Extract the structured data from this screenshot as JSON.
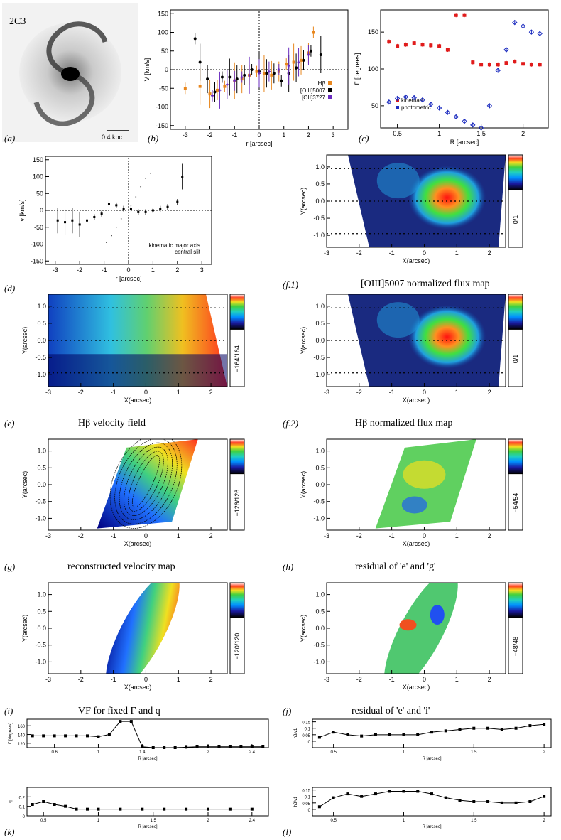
{
  "figure": {
    "galaxy": {
      "label": "2C3",
      "scale_bar": "0.4 kpc"
    },
    "panel_labels": [
      "(a)",
      "(b)",
      "(c)",
      "(d)",
      "(f.1)",
      "(e)",
      "(f.2)",
      "(g)",
      "(h)",
      "(i)",
      "(j)",
      "(k)",
      "(l)"
    ],
    "captions": {
      "f1": "[OIII]5007 normalized flux map",
      "e": "Hβ velocity field",
      "f2": "Hβ normalized flux map",
      "g": "reconstructed velocity map",
      "h": "residual of 'e' and 'g'",
      "i": "VF for fixed Γ and q",
      "j": "residual of 'e' and 'i'"
    },
    "colorbars": {
      "f1": "0/1",
      "e": "−164/164",
      "f2": "0/1",
      "g": "−126/126",
      "h": "−54/54",
      "i": "−120/120",
      "j": "−48/48"
    }
  },
  "chart_data": [
    {
      "id": "b",
      "type": "scatter",
      "xlabel": "r [arcsec]",
      "ylabel": "V [km/s]",
      "xlim": [
        -3.6,
        3.6
      ],
      "ylim": [
        -160,
        160
      ],
      "xticks": [
        -3,
        -2,
        -1,
        0,
        1,
        2,
        3
      ],
      "yticks": [
        -150,
        -100,
        -50,
        0,
        50,
        100,
        150
      ],
      "legend": [
        "Hβ",
        "[OIII]5007",
        "[OII]3727"
      ],
      "series": [
        {
          "name": "Hβ",
          "color": "#e8871e",
          "x": [
            -3.0,
            -2.4,
            -2.0,
            -1.7,
            -1.4,
            -1.0,
            -0.7,
            -0.4,
            -0.1,
            0.2,
            0.5,
            0.8,
            1.1,
            1.4,
            1.7,
            2.0,
            2.2
          ],
          "y": [
            -50,
            -45,
            -65,
            -55,
            -45,
            -30,
            -25,
            -15,
            -5,
            -10,
            -15,
            -5,
            15,
            20,
            25,
            45,
            100
          ]
        },
        {
          "name": "[OIII]5007",
          "color": "#000000",
          "x": [
            -2.6,
            -2.4,
            -2.1,
            -1.8,
            -1.5,
            -1.2,
            -0.9,
            -0.6,
            -0.3,
            0.0,
            0.3,
            0.6,
            0.9,
            1.2,
            1.5,
            1.8,
            2.1,
            2.5
          ],
          "y": [
            83,
            20,
            -25,
            -60,
            -20,
            -20,
            -25,
            -15,
            0,
            -5,
            -10,
            -10,
            -30,
            -10,
            5,
            25,
            50,
            40
          ]
        },
        {
          "name": "[OII]3727",
          "color": "#6a2bbf",
          "x": [
            -1.9,
            -1.6,
            -1.3,
            -1.0,
            -0.7,
            -0.4,
            0.0,
            0.4,
            0.8,
            1.2,
            1.6,
            2.0
          ],
          "y": [
            -70,
            -55,
            -40,
            -30,
            -20,
            -15,
            -10,
            -5,
            0,
            10,
            20,
            40
          ]
        }
      ]
    },
    {
      "id": "c",
      "type": "scatter",
      "xlabel": "R [arcsec]",
      "ylabel": "Γ [degrees]",
      "xlim": [
        0.3,
        2.3
      ],
      "ylim": [
        20,
        180
      ],
      "xticks": [
        0.5,
        1.0,
        1.5,
        2.0
      ],
      "yticks": [
        50,
        100,
        150
      ],
      "legend": [
        "kinematic",
        "photometric"
      ],
      "series": [
        {
          "name": "kinematic",
          "color": "#e01b1b",
          "x": [
            0.4,
            0.5,
            0.6,
            0.7,
            0.8,
            0.9,
            1.0,
            1.1,
            1.2,
            1.3,
            1.4,
            1.5,
            1.6,
            1.7,
            1.8,
            1.9,
            2.0,
            2.1,
            2.2
          ],
          "y": [
            137,
            131,
            133,
            135,
            133,
            132,
            131,
            126,
            173,
            173,
            109,
            106,
            106,
            106,
            108,
            110,
            107,
            106,
            106
          ]
        },
        {
          "name": "photometric",
          "color": "#1b2bbf",
          "x": [
            0.4,
            0.5,
            0.6,
            0.7,
            0.8,
            0.9,
            1.0,
            1.1,
            1.2,
            1.3,
            1.4,
            1.5,
            1.6,
            1.7,
            1.8,
            1.9,
            2.0,
            2.1,
            2.2
          ],
          "y": [
            55,
            60,
            62,
            61,
            58,
            52,
            47,
            41,
            35,
            29,
            24,
            20,
            50,
            98,
            126,
            163,
            158,
            150,
            148
          ]
        }
      ]
    },
    {
      "id": "d",
      "type": "scatter",
      "xlabel": "r [arcsec]",
      "ylabel": "v [km/s]",
      "xlim": [
        -3.4,
        3.4
      ],
      "ylim": [
        -160,
        160
      ],
      "xticks": [
        -3,
        -2,
        -1,
        0,
        1,
        2,
        3
      ],
      "yticks": [
        -150,
        -100,
        -50,
        0,
        50,
        100,
        150
      ],
      "legend": [
        "kinematic major axis",
        "central slit"
      ],
      "series": [
        {
          "name": "kinematic major axis",
          "x": [
            -0.9,
            -0.7,
            -0.5,
            -0.3,
            -0.1,
            0.1,
            0.3,
            0.5,
            0.7,
            0.9
          ],
          "y": [
            -95,
            -75,
            -50,
            -25,
            -5,
            15,
            40,
            70,
            95,
            110
          ]
        },
        {
          "name": "central slit",
          "x": [
            -2.9,
            -2.6,
            -2.3,
            -2.0,
            -1.7,
            -1.4,
            -1.1,
            -0.8,
            -0.5,
            -0.2,
            0.1,
            0.4,
            0.7,
            1.0,
            1.3,
            1.6,
            2.0,
            2.2
          ],
          "y": [
            -30,
            -35,
            -30,
            -42,
            -30,
            -20,
            -10,
            20,
            15,
            5,
            5,
            -5,
            -5,
            0,
            5,
            10,
            25,
            100
          ]
        }
      ]
    },
    {
      "id": "k1",
      "type": "line",
      "xlabel": "R [arcsec]",
      "ylabel": "Γ [degrees]",
      "xlim": [
        0.35,
        2.55
      ],
      "ylim": [
        110,
        175
      ],
      "xticks": [
        0.6,
        1.0,
        1.4,
        2.0,
        2.4
      ],
      "yticks": [
        120,
        140,
        160
      ],
      "x": [
        0.4,
        0.5,
        0.6,
        0.7,
        0.8,
        0.9,
        1.0,
        1.1,
        1.2,
        1.3,
        1.4,
        1.5,
        1.6,
        1.7,
        1.8,
        1.9,
        2.0,
        2.1,
        2.2,
        2.3,
        2.4,
        2.5
      ],
      "y": [
        137,
        137,
        137,
        137,
        137,
        137,
        135,
        140,
        170,
        170,
        112,
        110,
        110,
        110,
        111,
        112,
        112,
        112,
        112,
        112,
        112,
        112
      ]
    },
    {
      "id": "k2",
      "type": "line",
      "xlabel": "R [arcsec]",
      "ylabel": "q",
      "xlim": [
        0.35,
        2.55
      ],
      "ylim": [
        0.0,
        0.3
      ],
      "xticks": [
        0.5,
        1.0,
        1.5,
        2.0,
        2.4
      ],
      "yticks": [
        0.0,
        0.1,
        0.2
      ],
      "x": [
        0.4,
        0.5,
        0.6,
        0.7,
        0.8,
        0.9,
        1.0,
        1.2,
        1.4,
        1.6,
        1.8,
        2.0,
        2.2,
        2.4
      ],
      "y": [
        0.12,
        0.15,
        0.12,
        0.1,
        0.07,
        0.07,
        0.07,
        0.07,
        0.07,
        0.07,
        0.07,
        0.07,
        0.07,
        0.07
      ]
    },
    {
      "id": "l1",
      "type": "line",
      "xlabel": "R [arcsec]",
      "ylabel": "h3/v1",
      "xlim": [
        0.35,
        2.05
      ],
      "ylim": [
        -0.05,
        0.17
      ],
      "xticks": [
        0.5,
        1.0,
        1.5,
        2.0
      ],
      "yticks": [
        0.0,
        0.05,
        0.1,
        0.15
      ],
      "x": [
        0.4,
        0.5,
        0.6,
        0.7,
        0.8,
        0.9,
        1.0,
        1.1,
        1.2,
        1.3,
        1.4,
        1.5,
        1.6,
        1.7,
        1.8,
        1.9,
        2.0
      ],
      "y": [
        0.03,
        0.07,
        0.05,
        0.04,
        0.05,
        0.05,
        0.05,
        0.05,
        0.07,
        0.08,
        0.09,
        0.1,
        0.1,
        0.09,
        0.1,
        0.12,
        0.13
      ]
    },
    {
      "id": "l2",
      "type": "line",
      "xlabel": "R [arcsec]",
      "ylabel": "h3/v1",
      "xlim": [
        0.35,
        2.05
      ],
      "ylim": [
        -0.05,
        0.17
      ],
      "xticks": [
        0.5,
        1.0,
        1.5,
        2.0
      ],
      "yticks": [
        0.0,
        0.05,
        0.1,
        0.15
      ],
      "x": [
        0.4,
        0.5,
        0.6,
        0.7,
        0.8,
        0.9,
        1.0,
        1.1,
        1.2,
        1.3,
        1.4,
        1.5,
        1.6,
        1.7,
        1.8,
        1.9,
        2.0
      ],
      "y": [
        0.02,
        0.09,
        0.12,
        0.1,
        0.12,
        0.14,
        0.14,
        0.14,
        0.12,
        0.09,
        0.07,
        0.06,
        0.06,
        0.05,
        0.05,
        0.06,
        0.1
      ]
    },
    {
      "id": "maps",
      "type": "heatmap",
      "xlabel": "X(arcsec)",
      "ylabel": "Y(arcsec)",
      "xlim": [
        -3,
        2.5
      ],
      "ylim": [
        -1.35,
        1.35
      ],
      "xticks": [
        -3,
        -2,
        -1,
        0,
        1,
        2
      ],
      "yticks": [
        -1.0,
        -0.5,
        0.0,
        0.5,
        1.0
      ]
    }
  ]
}
